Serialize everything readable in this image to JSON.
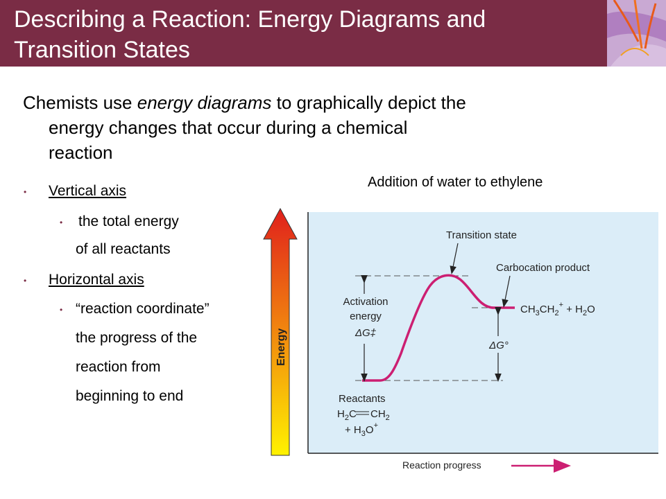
{
  "slide": {
    "title_line1": "Describing a Reaction: Energy Diagrams and",
    "title_line2": "Transition States"
  },
  "intro": {
    "pre": "Chemists use ",
    "em": "energy diagrams",
    "post": " to graphically depict the",
    "line2": "energy changes that occur during a chemical",
    "line3": "reaction"
  },
  "bullets": {
    "vertical_axis": "Vertical axis",
    "vertical_sub1": "the total energy",
    "vertical_sub2": "of all reactants",
    "horizontal_axis": "Horizontal axis",
    "horizontal_sub1": "“reaction coordinate”",
    "horizontal_sub2": "the progress of the",
    "horizontal_sub3": "reaction from",
    "horizontal_sub4": "beginning to end"
  },
  "caption": "Addition of water to ethylene",
  "diagram": {
    "energy_label": "Energy",
    "transition_state": "Transition state",
    "carbocation_product": "Carbocation product",
    "product_formula_ch3ch2": "CH",
    "activation_l1": "Activation",
    "activation_l2": "energy",
    "delta_g_dd": "ΔG‡",
    "delta_g_std": "ΔG°",
    "reactants": "Reactants",
    "reaction_progress": "Reaction progress",
    "colors": {
      "curve": "#cc1f72",
      "panel": "#dbedf8",
      "arrow_top": "#e0201c",
      "arrow_bottom": "#fff200"
    }
  }
}
